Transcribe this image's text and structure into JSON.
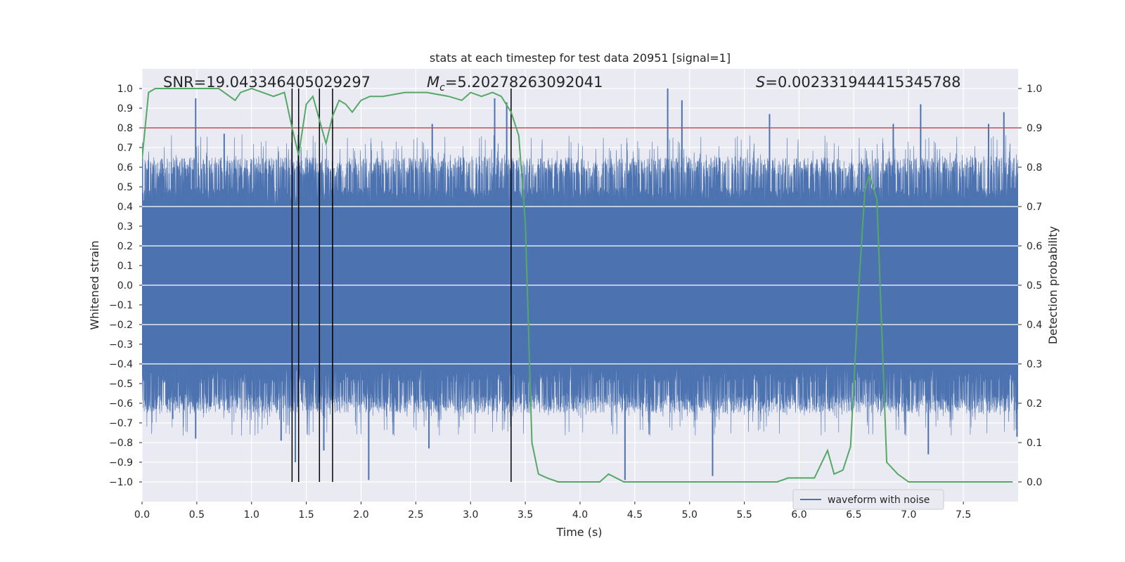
{
  "chart_data": {
    "type": "line",
    "title": "stats at each timestep for test data 20951 [signal=1]",
    "xlabel": "Time (s)",
    "ylabel_left": "Whitened strain",
    "ylabel_right": "Detection probability",
    "xlim": [
      0.0,
      8.0
    ],
    "ylim_left": [
      -1.1,
      1.1
    ],
    "ylim_right": [
      -0.05,
      1.05
    ],
    "x_ticks": [
      0.0,
      0.5,
      1.0,
      1.5,
      2.0,
      2.5,
      3.0,
      3.5,
      4.0,
      4.5,
      5.0,
      5.5,
      6.0,
      6.5,
      7.0,
      7.5
    ],
    "x_tick_labels": [
      "0.0",
      "0.5",
      "1.0",
      "1.5",
      "2.0",
      "2.5",
      "3.0",
      "3.5",
      "4.0",
      "4.5",
      "5.0",
      "5.5",
      "6.0",
      "6.5",
      "7.0",
      "7.5"
    ],
    "y_left_ticks": [
      1.0,
      0.9,
      0.8,
      0.7,
      0.6,
      0.5,
      0.4,
      0.3,
      0.2,
      0.1,
      0.0,
      -0.1,
      -0.2,
      -0.3,
      -0.4,
      -0.5,
      -0.6,
      -0.7,
      -0.8,
      -0.9,
      -1.0
    ],
    "y_left_tick_labels": [
      "1.0",
      "0.9",
      "0.8",
      "0.7",
      "0.6",
      "0.5",
      "0.4",
      "0.3",
      "0.2",
      "0.1",
      "0.0",
      "−0.1",
      "−0.2",
      "−0.3",
      "−0.4",
      "−0.5",
      "−0.6",
      "−0.7",
      "−0.8",
      "−0.9",
      "−1.0"
    ],
    "y_right_ticks": [
      1.0,
      0.9,
      0.8,
      0.7,
      0.6,
      0.5,
      0.4,
      0.3,
      0.2,
      0.1,
      0.0
    ],
    "y_right_tick_labels": [
      "1.0",
      "0.9",
      "0.8",
      "0.7",
      "0.6",
      "0.5",
      "0.4",
      "0.3",
      "0.2",
      "0.1",
      "0.0"
    ],
    "annotations": {
      "snr": "SNR=19.043346405029297",
      "mc_symbol": "M",
      "mc_sub": "c",
      "mc_value": "=5.20278263092041",
      "s_symbol": "S",
      "s_value": "=0.002331944415345788"
    },
    "threshold": {
      "value": 0.9,
      "axis": "right",
      "color": "#c44e52"
    },
    "detection_times": [
      1.37,
      1.43,
      1.62,
      1.74,
      3.37
    ],
    "waveform": {
      "name": "waveform with noise",
      "color": "#4c72b0",
      "envelope_core": 0.4,
      "envelope_typical": 0.55,
      "spikes": [
        {
          "t": 0.49,
          "v": 0.95
        },
        {
          "t": 0.49,
          "v": -0.78
        },
        {
          "t": 0.75,
          "v": 0.77
        },
        {
          "t": 0.28,
          "v": -0.68
        },
        {
          "t": 1.27,
          "v": -0.79
        },
        {
          "t": 1.4,
          "v": -0.9
        },
        {
          "t": 1.66,
          "v": -0.84
        },
        {
          "t": 2.07,
          "v": -0.99
        },
        {
          "t": 2.62,
          "v": -0.83
        },
        {
          "t": 2.65,
          "v": 0.82
        },
        {
          "t": 3.22,
          "v": 0.95
        },
        {
          "t": 3.33,
          "v": 0.93
        },
        {
          "t": 4.41,
          "v": -0.99
        },
        {
          "t": 4.8,
          "v": 1.0
        },
        {
          "t": 4.93,
          "v": 0.94
        },
        {
          "t": 5.21,
          "v": -0.97
        },
        {
          "t": 5.73,
          "v": 0.87
        },
        {
          "t": 6.86,
          "v": 0.82
        },
        {
          "t": 7.11,
          "v": 0.92
        },
        {
          "t": 7.18,
          "v": -0.86
        },
        {
          "t": 7.73,
          "v": 0.82
        },
        {
          "t": 7.87,
          "v": 0.88
        },
        {
          "t": 7.99,
          "v": -0.77
        }
      ]
    },
    "probability": {
      "color": "#55a868",
      "axis": "right",
      "x": [
        0.0,
        0.06,
        0.12,
        0.2,
        0.3,
        0.4,
        0.5,
        0.6,
        0.7,
        0.8,
        0.85,
        0.9,
        1.0,
        1.1,
        1.2,
        1.3,
        1.37,
        1.43,
        1.5,
        1.56,
        1.62,
        1.68,
        1.74,
        1.8,
        1.86,
        1.92,
        2.0,
        2.08,
        2.2,
        2.4,
        2.6,
        2.8,
        2.92,
        3.0,
        3.1,
        3.2,
        3.28,
        3.37,
        3.44,
        3.5,
        3.56,
        3.62,
        3.7,
        3.8,
        4.0,
        4.1,
        4.18,
        4.26,
        4.4,
        4.6,
        4.8,
        5.0,
        5.2,
        5.4,
        5.6,
        5.8,
        5.9,
        5.95,
        6.0,
        6.14,
        6.26,
        6.32,
        6.4,
        6.47,
        6.55,
        6.6,
        6.64,
        6.71,
        6.8,
        6.9,
        7.0,
        7.2,
        7.4,
        7.6,
        7.8,
        7.95
      ],
      "y": [
        0.82,
        0.99,
        1.0,
        1.0,
        1.0,
        1.0,
        1.0,
        1.0,
        1.0,
        0.98,
        0.97,
        0.99,
        1.0,
        0.99,
        0.98,
        0.99,
        0.9,
        0.83,
        0.96,
        0.98,
        0.92,
        0.86,
        0.93,
        0.97,
        0.96,
        0.94,
        0.97,
        0.98,
        0.98,
        0.99,
        0.99,
        0.98,
        0.97,
        0.99,
        0.98,
        0.99,
        0.98,
        0.94,
        0.88,
        0.66,
        0.1,
        0.02,
        0.01,
        0.0,
        0.0,
        0.0,
        0.0,
        0.02,
        0.0,
        0.0,
        0.0,
        0.0,
        0.0,
        0.0,
        0.0,
        0.0,
        0.01,
        0.01,
        0.01,
        0.01,
        0.08,
        0.02,
        0.03,
        0.09,
        0.52,
        0.74,
        0.78,
        0.72,
        0.05,
        0.02,
        0.0,
        0.0,
        0.0,
        0.0,
        0.0,
        0.0
      ]
    },
    "legend": {
      "label": "waveform with noise",
      "placement": "bottom-right"
    }
  }
}
